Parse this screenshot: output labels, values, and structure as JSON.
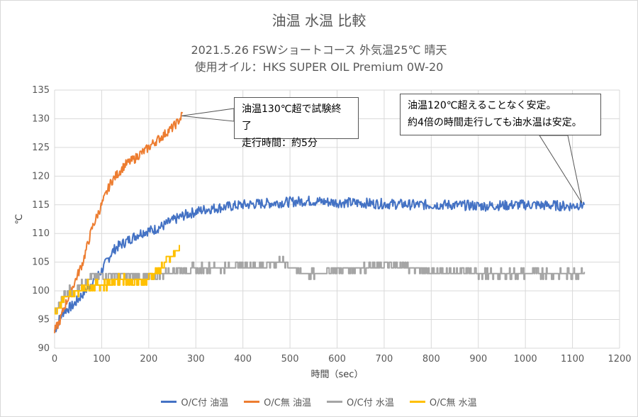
{
  "chart_data": {
    "type": "line",
    "title": "油温 水温 比較",
    "subtitle_line1": "2021.5.26 FSWショートコース 外気温25℃ 晴天",
    "subtitle_line2": "使用オイル：HKS SUPER OIL Premium 0W-20",
    "xlabel": "時間（sec）",
    "ylabel": "℃",
    "xlim": [
      0,
      1200
    ],
    "ylim": [
      90,
      135
    ],
    "x_ticks": [
      "0",
      "100",
      "200",
      "300",
      "400",
      "500",
      "600",
      "700",
      "800",
      "900",
      "1000",
      "1100",
      "1200"
    ],
    "y_ticks": [
      "90",
      "95",
      "100",
      "105",
      "110",
      "115",
      "120",
      "125",
      "130",
      "135"
    ],
    "grid": true,
    "legend_position": "bottom",
    "series": [
      {
        "name": "O/C付 油温",
        "color": "#4472c4",
        "x": [
          0,
          10,
          20,
          30,
          40,
          50,
          60,
          70,
          80,
          90,
          100,
          110,
          120,
          130,
          140,
          150,
          160,
          170,
          180,
          190,
          200,
          210,
          220,
          230,
          240,
          250,
          260,
          270,
          280,
          300,
          320,
          340,
          360,
          380,
          400,
          420,
          440,
          460,
          480,
          500,
          520,
          540,
          560,
          580,
          600,
          620,
          640,
          660,
          680,
          700,
          720,
          740,
          760,
          780,
          800,
          820,
          840,
          860,
          880,
          900,
          920,
          940,
          960,
          980,
          1000,
          1020,
          1040,
          1060,
          1080,
          1100,
          1110,
          1125
        ],
        "y": [
          93,
          95,
          96.5,
          97,
          97.5,
          98.5,
          99.5,
          100.5,
          101.5,
          102.5,
          103.5,
          105,
          106.5,
          107.5,
          108,
          108.5,
          109,
          109.5,
          110,
          110.3,
          110.5,
          110.6,
          111,
          111.3,
          111.8,
          112.2,
          112.6,
          113,
          113.3,
          113.8,
          114.2,
          114.4,
          114.6,
          114.8,
          115,
          115.1,
          115.2,
          115.3,
          115.4,
          115.5,
          115.6,
          115.7,
          115.6,
          115.5,
          115.4,
          115.4,
          115.3,
          115.3,
          115.2,
          115.2,
          115.1,
          115.1,
          115,
          115,
          115,
          115,
          115,
          114.9,
          114.9,
          114.8,
          114.8,
          114.9,
          114.9,
          115,
          115,
          115,
          114.9,
          114.9,
          114.8,
          114.8,
          115,
          115
        ]
      },
      {
        "name": "O/C無 油温",
        "color": "#ed7d31",
        "x": [
          0,
          10,
          20,
          30,
          40,
          50,
          60,
          70,
          80,
          90,
          100,
          110,
          120,
          130,
          140,
          150,
          160,
          170,
          180,
          190,
          200,
          210,
          220,
          230,
          240,
          250,
          260,
          268,
          272
        ],
        "y": [
          93,
          94.5,
          97,
          99,
          101,
          103,
          105,
          108,
          111,
          113,
          115,
          117,
          119,
          120,
          121,
          122,
          122.5,
          123,
          123.8,
          124.3,
          125,
          125.8,
          126.4,
          127,
          127.8,
          128.4,
          129.3,
          130.2,
          131
        ]
      },
      {
        "name": "O/C付 水温",
        "color": "#a5a5a5",
        "x": [
          0,
          10,
          20,
          30,
          40,
          50,
          60,
          70,
          80,
          90,
          100,
          110,
          120,
          130,
          140,
          150,
          160,
          170,
          180,
          190,
          200,
          210,
          220,
          230,
          240,
          250,
          260,
          280,
          300,
          320,
          340,
          360,
          380,
          400,
          420,
          440,
          460,
          480,
          500,
          520,
          540,
          560,
          580,
          600,
          620,
          640,
          660,
          680,
          700,
          720,
          740,
          760,
          780,
          800,
          820,
          840,
          860,
          880,
          900,
          920,
          940,
          960,
          980,
          1000,
          1020,
          1040,
          1060,
          1080,
          1100,
          1110,
          1125
        ],
        "y": [
          96,
          98,
          99,
          100,
          100,
          101,
          101.5,
          102,
          102.3,
          102.5,
          102.6,
          102.7,
          102.8,
          102.8,
          102.7,
          102.6,
          102.5,
          102.4,
          102.3,
          102.3,
          102.4,
          102.6,
          102.8,
          103,
          103.3,
          103.5,
          103.7,
          103.8,
          103.9,
          104,
          104,
          104.1,
          104.2,
          104.4,
          104.6,
          104.4,
          104.8,
          105.2,
          104.5,
          103.2,
          102.8,
          103,
          103.4,
          103.6,
          103.7,
          104,
          104.1,
          104.2,
          104.5,
          104.3,
          104.2,
          104,
          103.6,
          103.3,
          103.3,
          103.4,
          103.2,
          103.1,
          103,
          102.9,
          102.8,
          102.9,
          103,
          103.1,
          103.1,
          103.1,
          103,
          103,
          103,
          103.1,
          103.3
        ]
      },
      {
        "name": "O/C無 水温",
        "color": "#ffc000",
        "x": [
          0,
          10,
          20,
          30,
          40,
          50,
          60,
          70,
          80,
          90,
          100,
          110,
          120,
          130,
          140,
          150,
          160,
          170,
          180,
          190,
          200,
          210,
          220,
          230,
          240,
          250,
          260,
          265
        ],
        "y": [
          96,
          97.5,
          98.5,
          99,
          99.5,
          100,
          100.5,
          101,
          101,
          101,
          101,
          101,
          101.5,
          102,
          102,
          102,
          101.5,
          101.5,
          101.5,
          101.5,
          102.5,
          103,
          103.5,
          104.5,
          105.5,
          106,
          107,
          108
        ]
      }
    ],
    "annotations": [
      {
        "lines": [
          "油温130℃超で試験終了",
          "走行時間：約5分"
        ],
        "x": 270,
        "y": 130.5
      },
      {
        "lines": [
          "油温120℃超えることなく安定。",
          "約4倍の時間走行しても油水温は安定。"
        ],
        "x": 1120,
        "y": 115.3
      }
    ]
  }
}
